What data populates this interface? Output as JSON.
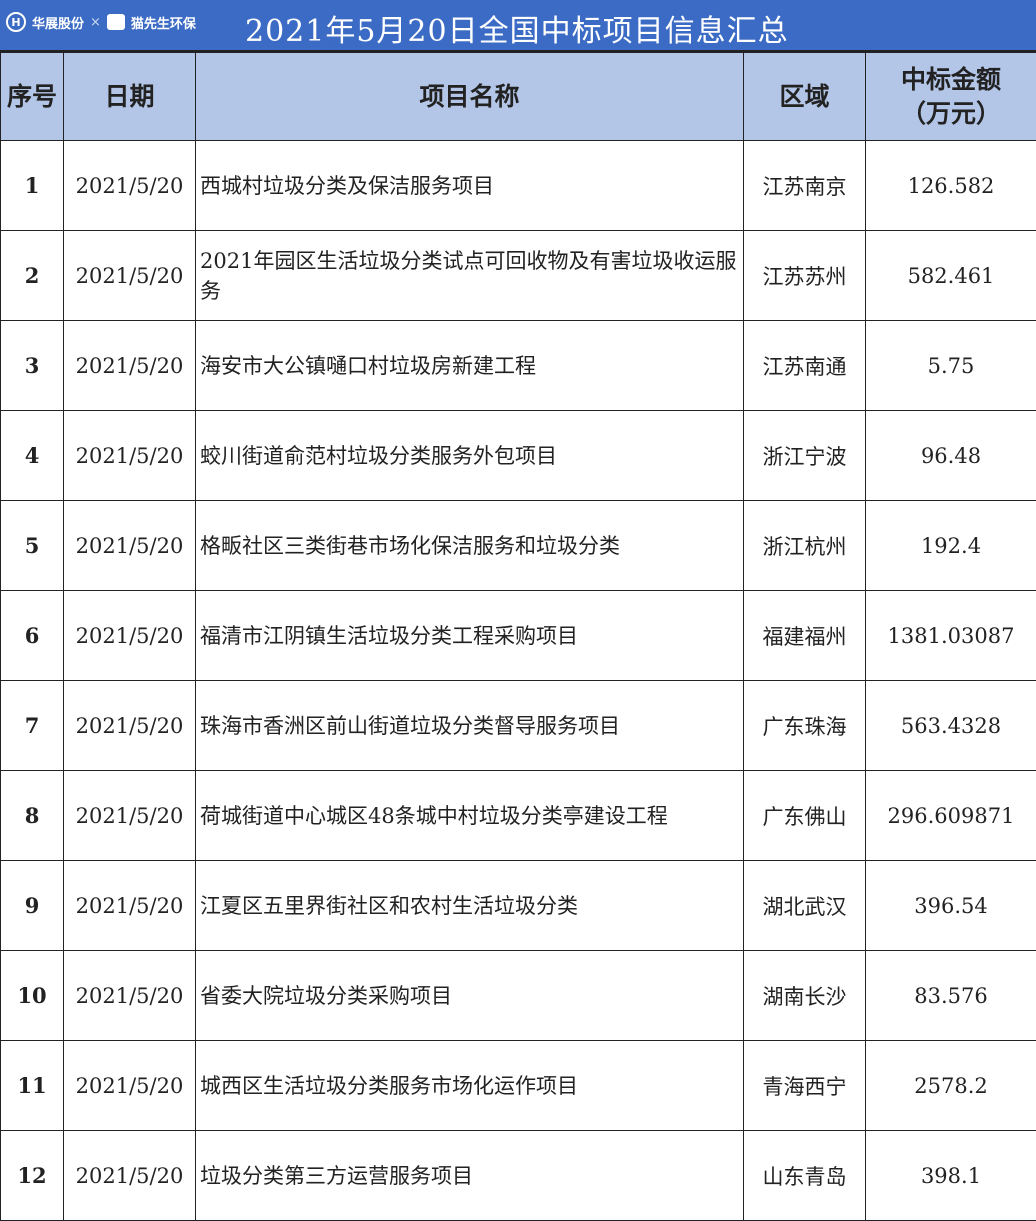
{
  "header": {
    "title": "2021年5月20日全国中标项目信息汇总",
    "logo_left": "华展股份",
    "logo_right": "猫先生环保"
  },
  "columns": [
    "序号",
    "日期",
    "项目名称",
    "区域",
    "中标金额\n（万元）"
  ],
  "rows": [
    {
      "no": "1",
      "date": "2021/5/20",
      "name": "西城村垃圾分类及保洁服务项目",
      "region": "江苏南京",
      "amount": "126.582"
    },
    {
      "no": "2",
      "date": "2021/5/20",
      "name": "2021年园区生活垃圾分类试点可回收物及有害垃圾收运服务",
      "region": "江苏苏州",
      "amount": "582.461"
    },
    {
      "no": "3",
      "date": "2021/5/20",
      "name": "海安市大公镇嗵口村垃圾房新建工程",
      "region": "江苏南通",
      "amount": "5.75"
    },
    {
      "no": "4",
      "date": "2021/5/20",
      "name": "蛟川街道俞范村垃圾分类服务外包项目",
      "region": "浙江宁波",
      "amount": "96.48"
    },
    {
      "no": "5",
      "date": "2021/5/20",
      "name": "格畈社区三类街巷市场化保洁服务和垃圾分类",
      "region": "浙江杭州",
      "amount": "192.4"
    },
    {
      "no": "6",
      "date": "2021/5/20",
      "name": "福清市江阴镇生活垃圾分类工程采购项目",
      "region": "福建福州",
      "amount": "1381.03087"
    },
    {
      "no": "7",
      "date": "2021/5/20",
      "name": "珠海市香洲区前山街道垃圾分类督导服务项目",
      "region": "广东珠海",
      "amount": "563.4328"
    },
    {
      "no": "8",
      "date": "2021/5/20",
      "name": "荷城街道中心城区48条城中村垃圾分类亭建设工程",
      "region": "广东佛山",
      "amount": "296.609871"
    },
    {
      "no": "9",
      "date": "2021/5/20",
      "name": "江夏区五里界街社区和农村生活垃圾分类",
      "region": "湖北武汉",
      "amount": "396.54"
    },
    {
      "no": "10",
      "date": "2021/5/20",
      "name": "省委大院垃圾分类采购项目",
      "region": "湖南长沙",
      "amount": "83.576"
    },
    {
      "no": "11",
      "date": "2021/5/20",
      "name": "城西区生活垃圾分类服务市场化运作项目",
      "region": "青海西宁",
      "amount": "2578.2"
    },
    {
      "no": "12",
      "date": "2021/5/20",
      "name": "垃圾分类第三方运营服务项目",
      "region": "山东青岛",
      "amount": "398.1"
    }
  ]
}
